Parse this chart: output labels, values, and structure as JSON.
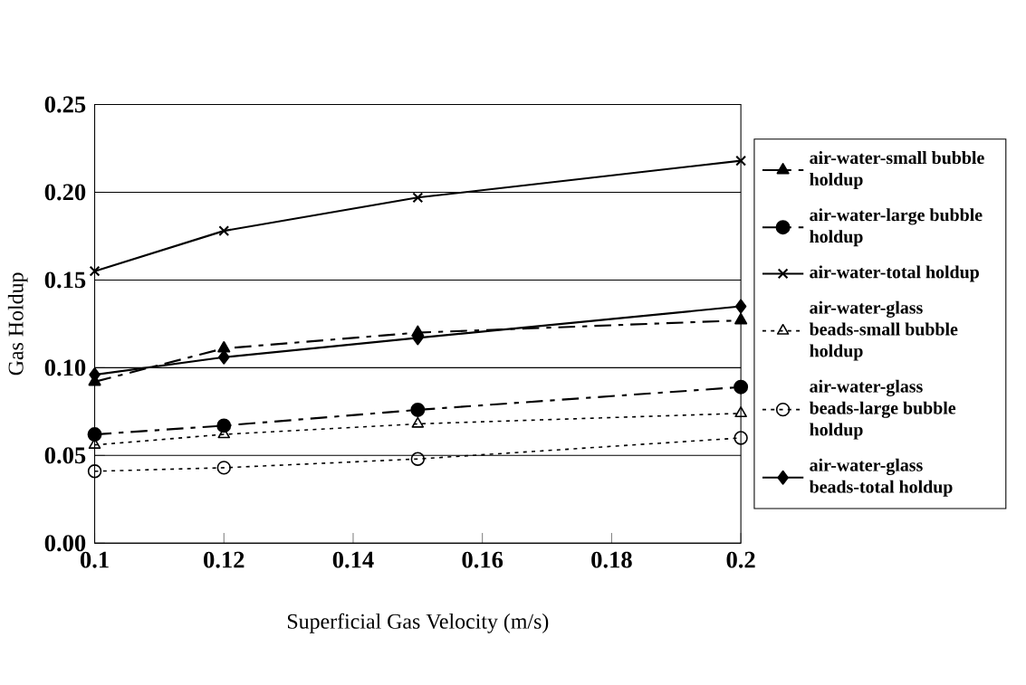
{
  "chart_data": {
    "type": "line",
    "xlabel": "Superficial Gas Velocity (m/s)",
    "ylabel": "Gas Holdup",
    "x": [
      0.1,
      0.12,
      0.15,
      0.2
    ],
    "series": [
      {
        "name": "air-water-small bubble holdup",
        "color": "#000000",
        "marker": "triangle",
        "line_style": "dashed",
        "values": [
          0.092,
          0.111,
          0.12,
          0.127
        ]
      },
      {
        "name": "air-water-large bubble holdup",
        "color": "#000000",
        "marker": "circle",
        "line_style": "dashed",
        "values": [
          0.062,
          0.067,
          0.076,
          0.089
        ]
      },
      {
        "name": "air-water-total holdup",
        "color": "#000000",
        "marker": "cross",
        "line_style": "solid",
        "values": [
          0.155,
          0.178,
          0.197,
          0.218
        ]
      },
      {
        "name": "air-water-glass beads-small bubble holdup",
        "color": "#000000",
        "marker": "triangle",
        "line_style": "dotted",
        "values": [
          0.056,
          0.062,
          0.068,
          0.074
        ]
      },
      {
        "name": "air-water-glass beads-large bubble holdup",
        "color": "#000000",
        "marker": "circle",
        "line_style": "dotted",
        "values": [
          0.041,
          0.043,
          0.048,
          0.06
        ]
      },
      {
        "name": "air-water-glass beads-total holdup",
        "color": "#000000",
        "marker": "diamond",
        "line_style": "solid",
        "values": [
          0.096,
          0.106,
          0.117,
          0.135
        ]
      }
    ],
    "xlim": [
      0.1,
      0.2
    ],
    "ylim": [
      0,
      0.25
    ],
    "xticks": [
      0.1,
      0.12,
      0.14,
      0.16,
      0.18,
      0.2
    ],
    "yticks": [
      {
        "value": 0,
        "label": "0.00"
      },
      {
        "value": 0.05,
        "label": "0.05"
      },
      {
        "value": 0.1,
        "label": "0.10"
      },
      {
        "value": 0.15,
        "label": "0.15"
      },
      {
        "value": 0.2,
        "label": "0.20"
      },
      {
        "value": 0.25,
        "label": "0.25"
      }
    ],
    "grid": "y",
    "legend": "right"
  }
}
